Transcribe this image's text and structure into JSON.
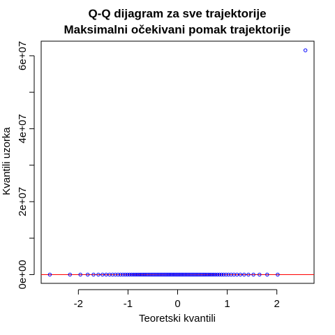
{
  "chart_data": {
    "type": "scatter",
    "title": "Q-Q dijagram za sve trajektorije",
    "subtitle": "Maksimalni očekivani pomak trajektorije",
    "xlabel": "Teoretski kvantili",
    "ylabel": "Kvantili uzorka",
    "xlim": [
      -2.75,
      2.75
    ],
    "ylim": [
      -2400000,
      64000000
    ],
    "x_ticks": [
      -2,
      -1,
      0,
      1,
      2
    ],
    "x_tick_labels": [
      "-2",
      "-1",
      "0",
      "1",
      "2"
    ],
    "y_ticks": [
      0,
      20000000,
      40000000,
      60000000
    ],
    "y_tick_labels": [
      "0e+00",
      "2e+07",
      "4e+07",
      "6e+07"
    ],
    "grid": false,
    "legend": "none",
    "point_color": "#0000FF",
    "line_color": "#FF0000",
    "reference_line": {
      "intercept": 0,
      "slope": 0
    },
    "series": [
      {
        "x": [
          -2.576,
          -2.17,
          -1.96,
          -1.812,
          -1.695,
          -1.598,
          -1.514,
          -1.44,
          -1.372,
          -1.311,
          -1.254,
          -1.2,
          -1.15,
          -1.103,
          -1.058,
          -1.015,
          -0.973,
          -0.933,
          -0.894,
          -0.857,
          -0.821,
          -0.785,
          -0.751,
          -0.717,
          -0.684,
          -0.652,
          -0.62,
          -0.589,
          -0.559,
          -0.529,
          -0.499,
          -0.47,
          -0.441,
          -0.412,
          -0.384,
          -0.356,
          -0.328,
          -0.301,
          -0.273,
          -0.246,
          -0.219,
          -0.192,
          -0.166,
          -0.139,
          -0.113,
          -0.086,
          -0.06,
          -0.033,
          -0.007,
          0.02,
          0.046,
          0.073,
          0.099,
          0.126,
          0.153,
          0.18,
          0.207,
          0.234,
          0.262,
          0.29,
          0.318,
          0.346,
          0.375,
          0.404,
          0.433,
          0.463,
          0.494,
          0.525,
          0.556,
          0.589,
          0.622,
          0.656,
          0.691,
          0.727,
          0.764,
          0.803,
          0.843,
          0.885,
          0.929,
          0.976,
          1.025,
          1.078,
          1.135,
          1.197,
          1.265,
          1.341,
          1.427,
          1.528,
          1.65,
          1.805,
          2.017,
          2.576
        ],
        "y": [
          0,
          0,
          0,
          0,
          0,
          0,
          0,
          0,
          0,
          0,
          0,
          0,
          0,
          0,
          0,
          0,
          0,
          0,
          0,
          0,
          0,
          0,
          0,
          0,
          0,
          0,
          0,
          0,
          0,
          0,
          0,
          0,
          0,
          0,
          0,
          0,
          0,
          0,
          0,
          0,
          0,
          0,
          0,
          0,
          0,
          0,
          0,
          0,
          0,
          0,
          0,
          0,
          0,
          0,
          0,
          0,
          0,
          0,
          0,
          0,
          0,
          0,
          0,
          0,
          0,
          0,
          0,
          0,
          0,
          0,
          0,
          0,
          0,
          0,
          0,
          0,
          0,
          0,
          0,
          0,
          0,
          0,
          0,
          0,
          0,
          0,
          0,
          0,
          0,
          0,
          0,
          61500000
        ]
      }
    ]
  }
}
